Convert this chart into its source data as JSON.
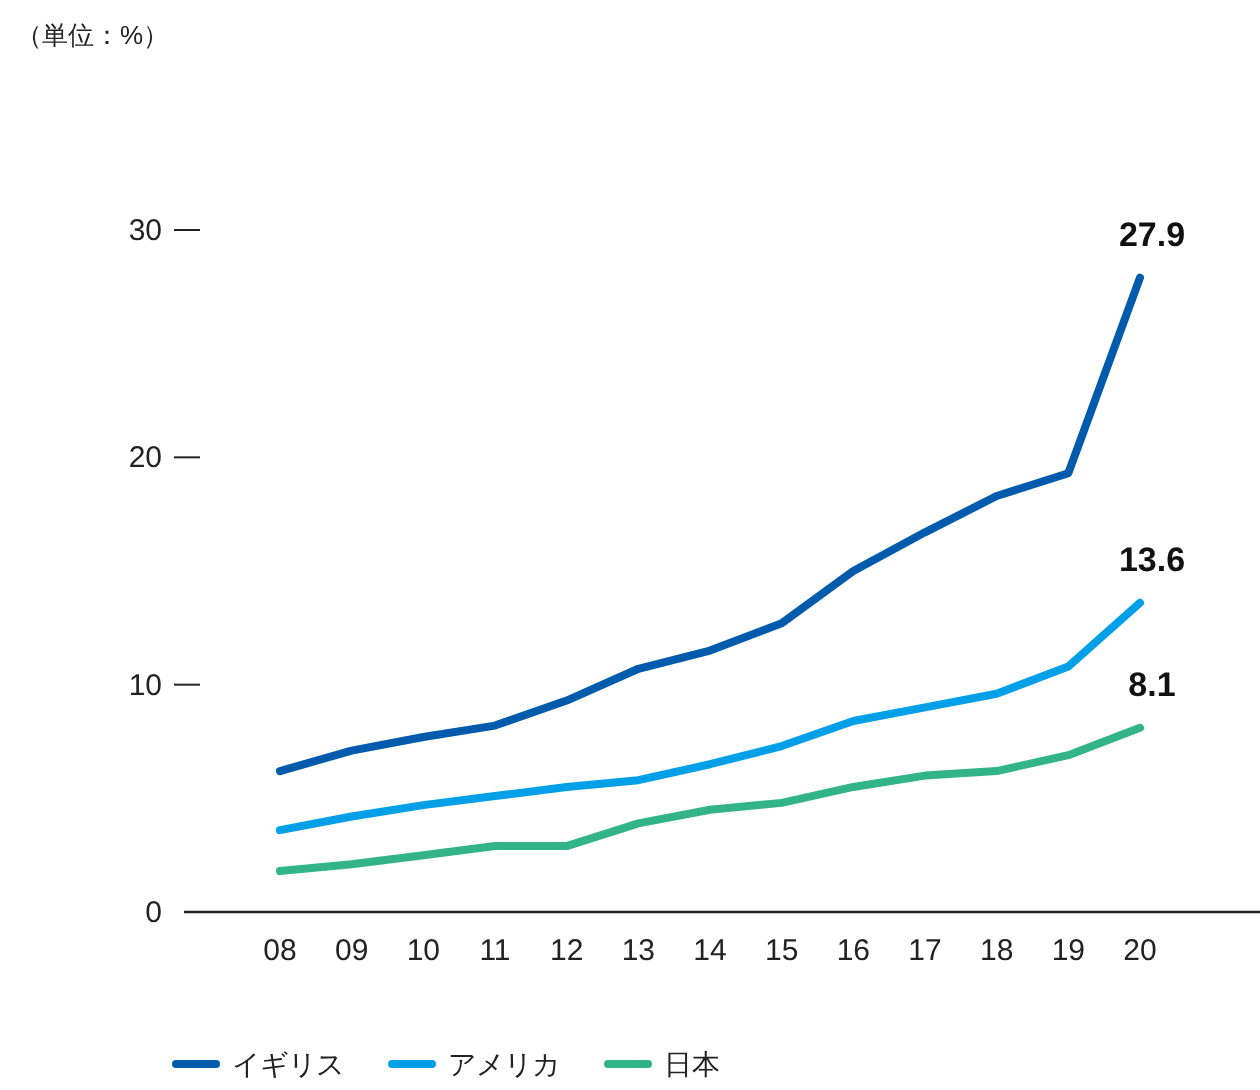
{
  "chart_data": {
    "type": "line",
    "title": "（単位：%）",
    "categories": [
      "08",
      "09",
      "10",
      "11",
      "12",
      "13",
      "14",
      "15",
      "16",
      "17",
      "18",
      "19",
      "20"
    ],
    "series": [
      {
        "name": "イギリス",
        "color": "#005bac",
        "values": [
          6.2,
          7.1,
          7.7,
          8.2,
          9.3,
          10.7,
          11.5,
          12.7,
          15.0,
          16.7,
          18.3,
          19.3,
          27.9
        ],
        "value_labels": [
          null,
          null,
          null,
          null,
          null,
          null,
          null,
          null,
          null,
          null,
          null,
          null,
          "27.9"
        ]
      },
      {
        "name": "アメリカ",
        "color": "#00a0e9",
        "values": [
          3.6,
          4.2,
          4.7,
          5.1,
          5.5,
          5.8,
          6.5,
          7.3,
          8.4,
          9.0,
          9.6,
          10.8,
          13.6
        ],
        "value_labels": [
          null,
          null,
          null,
          null,
          null,
          null,
          null,
          null,
          null,
          null,
          null,
          null,
          "13.6"
        ]
      },
      {
        "name": "日本",
        "color": "#32b488",
        "values": [
          1.8,
          2.1,
          2.5,
          2.9,
          2.9,
          3.9,
          4.5,
          4.8,
          5.5,
          6.0,
          6.2,
          6.9,
          8.1
        ],
        "value_labels": [
          null,
          null,
          null,
          null,
          null,
          null,
          null,
          null,
          null,
          null,
          null,
          null,
          "8.1"
        ]
      }
    ],
    "ylim": [
      0,
      30
    ],
    "yticks": [
      0,
      10,
      20,
      30
    ],
    "grid": false,
    "legend": "bottom",
    "marker": "none",
    "line_style": "solid"
  }
}
